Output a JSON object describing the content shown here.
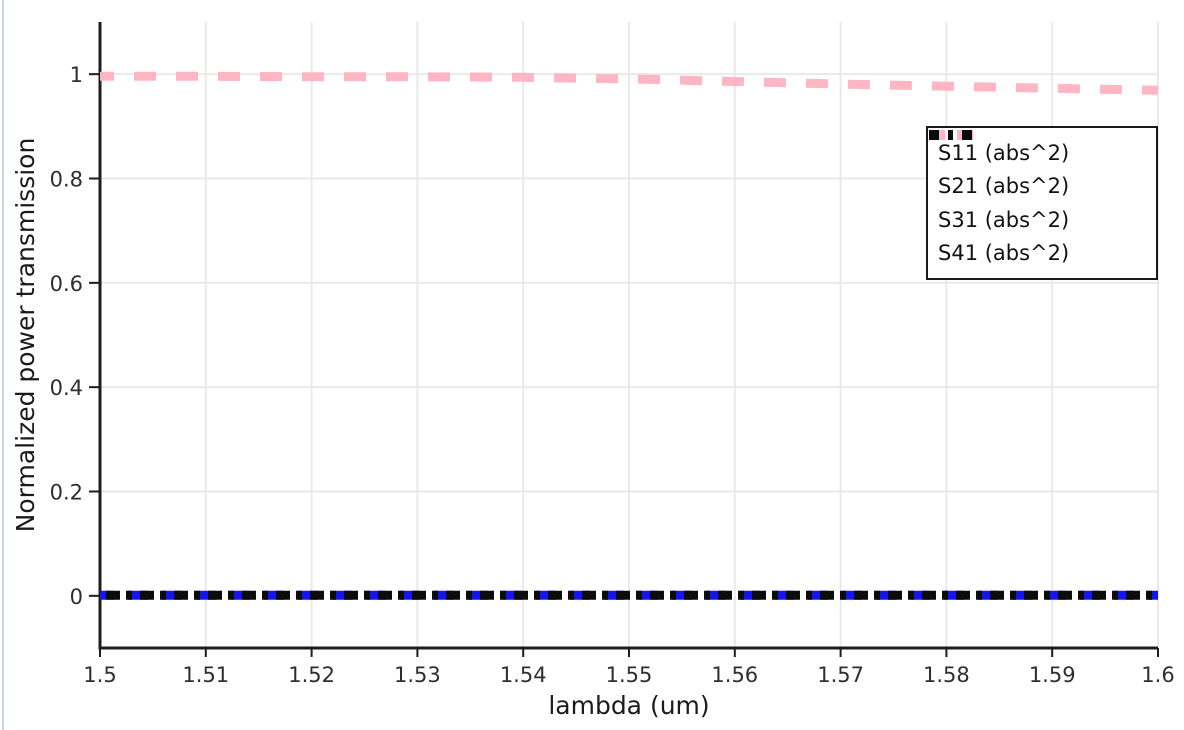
{
  "chart_data": {
    "type": "line",
    "title": "",
    "xlabel": "lambda (um)",
    "ylabel": "Normalized power transmission",
    "xlim": [
      1.5,
      1.6
    ],
    "ylim": [
      -0.1,
      1.1
    ],
    "grid": true,
    "legend_position": "upper right",
    "x_ticks": [
      1.5,
      1.51,
      1.52,
      1.53,
      1.54,
      1.55,
      1.56,
      1.57,
      1.58,
      1.59,
      1.6
    ],
    "x_tick_labels": [
      "1.5",
      "1.51",
      "1.52",
      "1.53",
      "1.54",
      "1.55",
      "1.56",
      "1.57",
      "1.58",
      "1.59",
      "1.6"
    ],
    "y_ticks": [
      0,
      0.2,
      0.4,
      0.6,
      0.8,
      1
    ],
    "y_tick_labels": [
      "0",
      "0.2",
      "0.4",
      "0.6",
      "0.8",
      "1"
    ],
    "x": [
      1.5,
      1.51,
      1.52,
      1.53,
      1.54,
      1.55,
      1.56,
      1.57,
      1.58,
      1.59,
      1.6
    ],
    "series": [
      {
        "name": "S11 (abs^2)",
        "color": "#1414ee",
        "style": "dashed",
        "values": [
          0.001,
          0.001,
          0.001,
          0.001,
          0.001,
          0.001,
          0.001,
          0.001,
          0.001,
          0.001,
          0.001
        ]
      },
      {
        "name": "S21 (abs^2)",
        "color": "#00e000",
        "style": "dash-dot",
        "values": [
          0.001,
          0.001,
          0.001,
          0.001,
          0.001,
          0.001,
          0.001,
          0.001,
          0.001,
          0.001,
          0.001
        ]
      },
      {
        "name": "S31 (abs^2)",
        "color": "#ffb6c4",
        "style": "dashed",
        "values": [
          0.996,
          0.996,
          0.995,
          0.995,
          0.994,
          0.991,
          0.986,
          0.981,
          0.977,
          0.973,
          0.969
        ]
      },
      {
        "name": "S41 (abs^2)",
        "color": "#0b0b0b",
        "style": "dash-dot",
        "values": [
          0.001,
          0.001,
          0.001,
          0.001,
          0.001,
          0.001,
          0.001,
          0.001,
          0.001,
          0.001,
          0.001
        ]
      }
    ]
  },
  "colors": {
    "background": "#ffffff",
    "grid": "#e9e9e9",
    "axis": "#1d1d1d",
    "tick_text": "#2e2e2e",
    "window_border": "#cdd4e8"
  }
}
